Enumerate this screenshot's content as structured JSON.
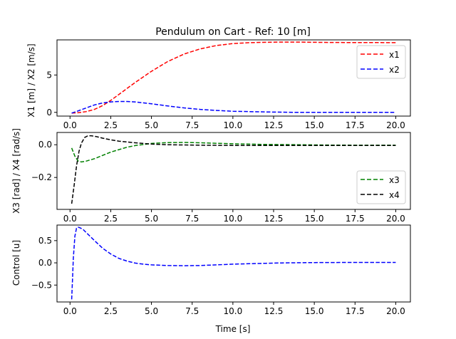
{
  "chart_data": [
    {
      "type": "line",
      "title": "Pendulum on Cart - Ref: 10 [m]",
      "ylabel": "X1 [m] / X2 [m/s]",
      "xlabel": "",
      "xlim": [
        -0.8,
        20.9
      ],
      "ylim": [
        -0.5,
        9.7
      ],
      "xticks": [
        0.0,
        2.5,
        5.0,
        7.5,
        10.0,
        12.5,
        15.0,
        17.5,
        20.0
      ],
      "xtick_labels": [
        "0.0",
        "2.5",
        "5.0",
        "7.5",
        "10.0",
        "12.5",
        "15.0",
        "17.5",
        "20.0"
      ],
      "yticks": [
        0,
        5
      ],
      "ytick_labels": [
        "0",
        "5"
      ],
      "legend": "top-right",
      "series": [
        {
          "name": "x1",
          "color": "#ff0000",
          "dash": "dashed",
          "x": [
            0.1,
            0.5,
            1.0,
            1.5,
            2.0,
            2.5,
            3.0,
            4.0,
            5.0,
            6.0,
            7.0,
            8.0,
            9.0,
            10.0,
            11.0,
            12.0,
            13.0,
            14.0,
            15.0,
            16.0,
            17.0,
            18.0,
            19.0,
            20.0
          ],
          "y": [
            -0.1,
            -0.05,
            0.1,
            0.4,
            0.9,
            1.6,
            2.4,
            4.0,
            5.5,
            6.8,
            7.8,
            8.5,
            8.95,
            9.2,
            9.33,
            9.38,
            9.4,
            9.4,
            9.38,
            9.36,
            9.35,
            9.34,
            9.34,
            9.33
          ]
        },
        {
          "name": "x2",
          "color": "#0000ff",
          "dash": "dashed",
          "x": [
            0.1,
            0.5,
            1.0,
            1.5,
            2.0,
            2.5,
            3.0,
            3.5,
            4.0,
            5.0,
            6.0,
            7.0,
            8.0,
            9.0,
            10.0,
            11.0,
            12.0,
            13.0,
            14.0,
            15.0,
            16.0,
            17.0,
            18.0,
            19.0,
            20.0
          ],
          "y": [
            -0.1,
            0.2,
            0.6,
            1.0,
            1.25,
            1.4,
            1.45,
            1.45,
            1.4,
            1.15,
            0.85,
            0.6,
            0.4,
            0.25,
            0.15,
            0.1,
            0.05,
            0.02,
            0.0,
            0.0,
            0.0,
            0.0,
            0.0,
            0.0,
            0.0
          ]
        }
      ]
    },
    {
      "type": "line",
      "title": "",
      "ylabel": "X3 [rad] / X4 [rad/s]",
      "xlabel": "",
      "xlim": [
        -0.8,
        20.9
      ],
      "ylim": [
        -0.395,
        0.075
      ],
      "xticks": [
        0.0,
        2.5,
        5.0,
        7.5,
        10.0,
        12.5,
        15.0,
        17.5,
        20.0
      ],
      "xtick_labels": [
        "0.0",
        "2.5",
        "5.0",
        "7.5",
        "10.0",
        "12.5",
        "15.0",
        "17.5",
        "20.0"
      ],
      "yticks": [
        -0.2,
        0.0
      ],
      "ytick_labels": [
        "−0.2",
        "0.0"
      ],
      "legend": "bottom-right",
      "series": [
        {
          "name": "x3",
          "color": "#008000",
          "dash": "dashed",
          "x": [
            0.1,
            0.3,
            0.5,
            0.7,
            1.0,
            1.5,
            2.0,
            2.5,
            3.0,
            3.5,
            4.0,
            5.0,
            6.0,
            7.0,
            8.0,
            9.0,
            10.0,
            12.0,
            14.0,
            16.0,
            18.0,
            20.0
          ],
          "y": [
            -0.02,
            -0.07,
            -0.1,
            -0.105,
            -0.1,
            -0.085,
            -0.065,
            -0.045,
            -0.03,
            -0.015,
            -0.005,
            0.008,
            0.013,
            0.014,
            0.012,
            0.009,
            0.006,
            0.002,
            0.0,
            -0.002,
            -0.003,
            -0.003
          ]
        },
        {
          "name": "x4",
          "color": "#000000",
          "dash": "dashed",
          "x": [
            0.1,
            0.25,
            0.4,
            0.55,
            0.7,
            0.9,
            1.1,
            1.3,
            1.6,
            2.0,
            2.5,
            3.0,
            4.0,
            5.0,
            6.0,
            8.0,
            10.0,
            12.0,
            14.0,
            16.0,
            18.0,
            20.0
          ],
          "y": [
            -0.36,
            -0.25,
            -0.13,
            -0.04,
            0.01,
            0.045,
            0.055,
            0.055,
            0.05,
            0.04,
            0.03,
            0.022,
            0.012,
            0.004,
            0.0,
            -0.003,
            -0.004,
            -0.004,
            -0.004,
            -0.004,
            -0.004,
            -0.004
          ]
        }
      ]
    },
    {
      "type": "line",
      "title": "",
      "ylabel": "Control [u]",
      "xlabel": "Time [s]",
      "xlim": [
        -0.8,
        20.9
      ],
      "ylim": [
        -0.88,
        0.85
      ],
      "xticks": [
        0.0,
        2.5,
        5.0,
        7.5,
        10.0,
        12.5,
        15.0,
        17.5,
        20.0
      ],
      "xtick_labels": [
        "0.0",
        "2.5",
        "5.0",
        "7.5",
        "10.0",
        "12.5",
        "15.0",
        "17.5",
        "20.0"
      ],
      "yticks": [
        -0.5,
        0.0,
        0.5
      ],
      "ytick_labels": [
        "−0.5",
        "0.0",
        "0.5"
      ],
      "legend": "none",
      "series": [
        {
          "name": "",
          "color": "#0000ff",
          "dash": "dashed",
          "x": [
            0.1,
            0.15,
            0.2,
            0.3,
            0.4,
            0.5,
            0.6,
            0.8,
            1.0,
            1.5,
            2.0,
            2.5,
            3.0,
            3.5,
            4.0,
            4.5,
            5.0,
            6.0,
            7.0,
            8.0,
            9.0,
            10.0,
            11.0,
            12.0,
            13.0,
            14.0,
            15.0,
            16.0,
            17.0,
            18.0,
            19.0,
            20.0
          ],
          "y": [
            -0.82,
            -0.4,
            0.1,
            0.6,
            0.78,
            0.8,
            0.79,
            0.75,
            0.68,
            0.5,
            0.33,
            0.2,
            0.1,
            0.04,
            -0.005,
            -0.03,
            -0.045,
            -0.06,
            -0.065,
            -0.06,
            -0.045,
            -0.03,
            -0.02,
            -0.01,
            -0.002,
            0.003,
            0.006,
            0.008,
            0.009,
            0.009,
            0.009,
            0.009
          ]
        }
      ]
    }
  ]
}
